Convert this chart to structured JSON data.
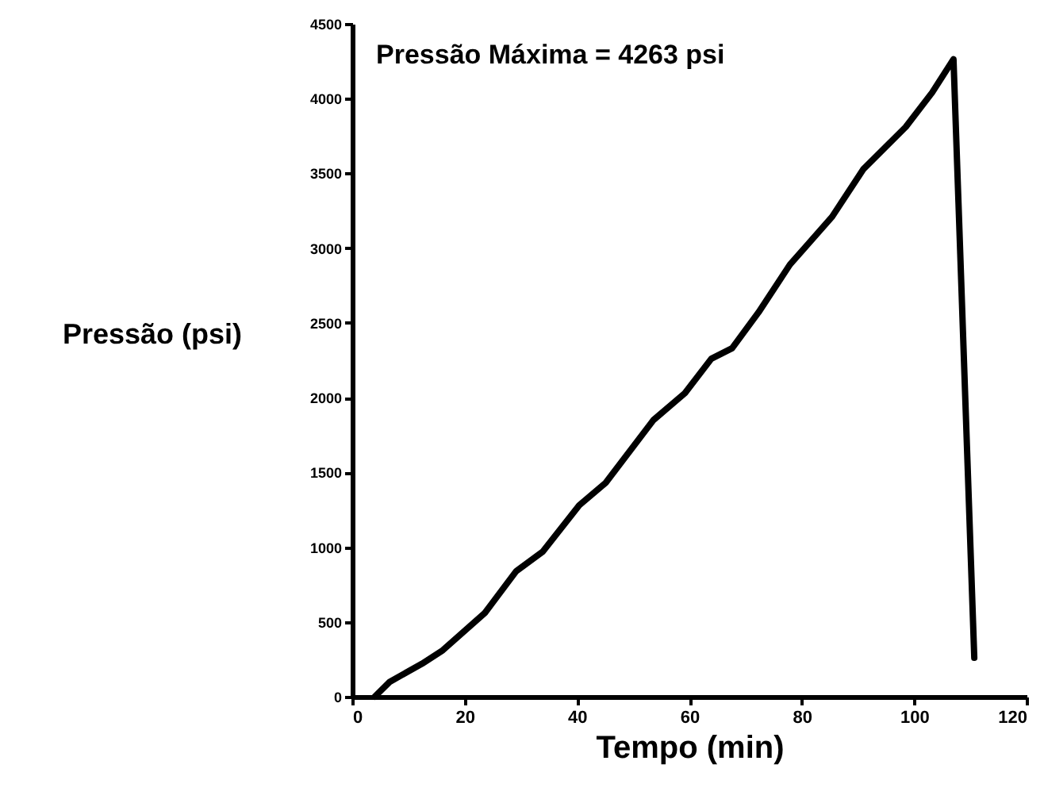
{
  "chart_data": {
    "type": "line",
    "xlabel": "Tempo (min)",
    "ylabel": "Pressão (psi)",
    "annotations": [
      "Pressão Máxima = 4263 psi"
    ],
    "x": [
      4,
      6.7,
      12.4,
      16.1,
      23.6,
      29.2,
      33.9,
      40.4,
      45.1,
      53.6,
      59.2,
      63.9,
      67.6,
      72.3,
      77.9,
      85.4,
      91.0,
      98.5,
      103.2,
      107,
      110.7
    ],
    "series": [
      {
        "color": "#000000",
        "values": [
          0,
          100,
          220,
          310,
          560,
          840,
          970,
          1280,
          1430,
          1850,
          2030,
          2260,
          2330,
          2570,
          2890,
          3210,
          3530,
          3810,
          4040,
          4263,
          260
        ]
      }
    ],
    "xlim": [
      0,
      120
    ],
    "xticks": [
      0,
      20,
      40,
      60,
      80,
      100,
      120
    ],
    "ylim": [
      0,
      4500
    ],
    "yticks": [
      0,
      500,
      1000,
      1500,
      2000,
      2500,
      3000,
      3500,
      4000,
      4500
    ],
    "grid": false,
    "marker": "none",
    "line_style": "solid"
  }
}
